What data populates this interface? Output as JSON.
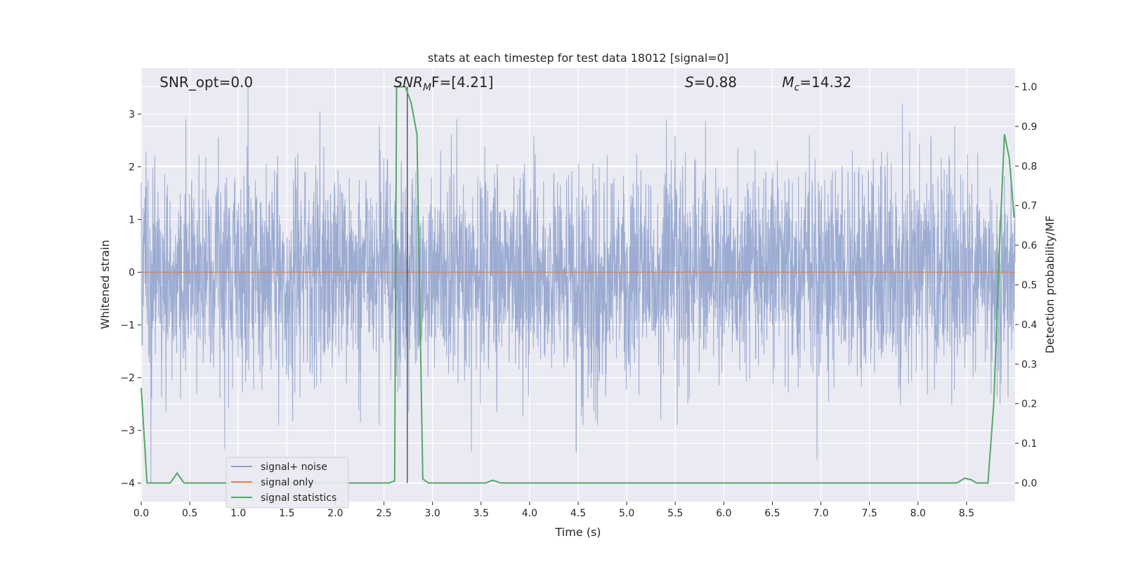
{
  "chart_data": {
    "type": "line",
    "title": "stats at each timestep for test data 18012 [signal=0]",
    "xlabel": "Time (s)",
    "ylabel_left": "Whitened strain",
    "ylabel_right": "Detection probability/MF",
    "xlim": [
      0.0,
      9.0
    ],
    "ylim_left": [
      -4.35,
      3.87
    ],
    "ylim_right": [
      -0.047,
      1.047
    ],
    "x_ticks": [
      0.0,
      0.5,
      1.0,
      1.5,
      2.0,
      2.5,
      3.0,
      3.5,
      4.0,
      4.5,
      5.0,
      5.5,
      6.0,
      6.5,
      7.0,
      7.5,
      8.0,
      8.5
    ],
    "x_tick_labels": [
      "0.0",
      "0.5",
      "1.0",
      "1.5",
      "2.0",
      "2.5",
      "3.0",
      "3.5",
      "4.0",
      "4.5",
      "5.0",
      "5.5",
      "6.0",
      "6.5",
      "7.0",
      "7.5",
      "8.0",
      "8.5"
    ],
    "y_left_ticks": [
      -4,
      -3,
      -2,
      -1,
      0,
      1,
      2,
      3
    ],
    "y_left_tick_labels": [
      "−4",
      "−3",
      "−2",
      "−1",
      "0",
      "1",
      "2",
      "3"
    ],
    "y_right_ticks": [
      0.0,
      0.1,
      0.2,
      0.3,
      0.4,
      0.5,
      0.6,
      0.7,
      0.8,
      0.9,
      1.0
    ],
    "y_right_tick_labels": [
      "0.0",
      "0.1",
      "0.2",
      "0.3",
      "0.4",
      "0.5",
      "0.6",
      "0.7",
      "0.8",
      "0.9",
      "1.0"
    ],
    "grid": true,
    "legend_position": "lower-left",
    "annotations": [
      {
        "text": "SNR_opt=0.0",
        "x": 0.19
      },
      {
        "text": "SNR",
        "sub": "M",
        "rest": "F=[4.21]",
        "x": 2.6,
        "italic": true
      },
      {
        "text": "S",
        "rest": "=0.88",
        "x": 5.6,
        "italic": true
      },
      {
        "text": "M",
        "sub": "c",
        "rest": "=14.32",
        "x": 6.6,
        "italic": true
      }
    ],
    "vertical_marker_x": 2.74,
    "series": [
      {
        "name": "signal+ noise",
        "color": "#8da0cb",
        "axis": "left",
        "style": "noise",
        "amplitude_std": 1.0,
        "peaks": [
          {
            "x": 1.1,
            "y": 3.5
          },
          {
            "x": 1.84,
            "y": 3.05
          },
          {
            "x": 7.84,
            "y": 3.2
          },
          {
            "x": 6.96,
            "y": -3.55
          },
          {
            "x": 0.1,
            "y": -4.0
          },
          {
            "x": 4.48,
            "y": -3.4
          },
          {
            "x": 3.4,
            "y": -3.4
          },
          {
            "x": 0.86,
            "y": -3.35
          }
        ]
      },
      {
        "name": "signal only",
        "color": "#dd8452",
        "axis": "left",
        "x": [
          0.0,
          9.0
        ],
        "y": [
          0.0,
          0.0
        ]
      },
      {
        "name": "signal statistics",
        "color": "#55a868",
        "axis": "right",
        "x": [
          0.0,
          0.06,
          0.3,
          0.37,
          0.44,
          2.55,
          2.61,
          2.63,
          2.66,
          2.72,
          2.78,
          2.84,
          2.9,
          2.96,
          3.55,
          3.62,
          3.7,
          6.5,
          8.4,
          8.48,
          8.55,
          8.6,
          8.66,
          8.72,
          8.78,
          8.84,
          8.89,
          8.94,
          8.99
        ],
        "y": [
          0.24,
          0.0,
          0.0,
          0.025,
          0.0,
          0.0,
          0.005,
          1.0,
          1.0,
          1.0,
          0.96,
          0.88,
          0.01,
          0.0,
          0.0,
          0.007,
          0.0,
          0.0,
          0.0,
          0.012,
          0.008,
          0.0,
          0.0,
          0.0,
          0.2,
          0.6,
          0.88,
          0.82,
          0.67
        ]
      }
    ]
  }
}
